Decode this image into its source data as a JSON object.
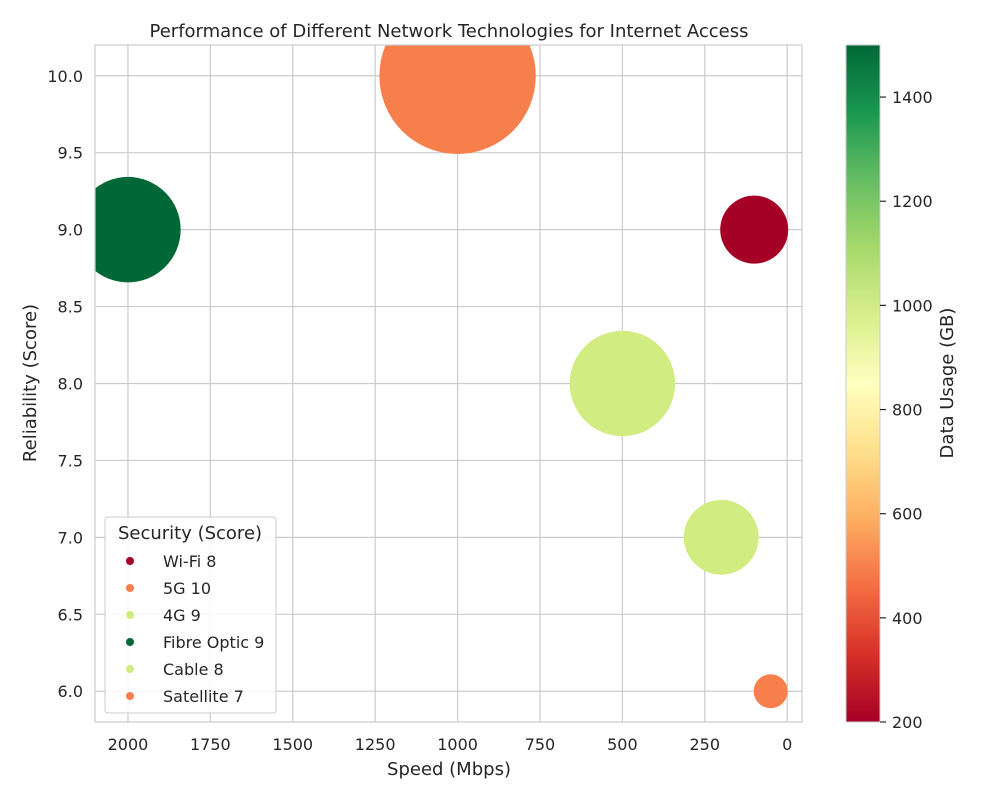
{
  "chart_data": {
    "type": "scatter",
    "title": "Performance of Different Network Technologies for Internet Access",
    "xlabel": "Speed (Mbps)",
    "ylabel": "Reliability (Score)",
    "xlim": [
      2100,
      -45
    ],
    "ylim": [
      5.8,
      10.2
    ],
    "x_inverted": true,
    "x_ticks": [
      2000,
      1750,
      1500,
      1250,
      1000,
      750,
      500,
      250,
      0
    ],
    "y_ticks": [
      "6.0",
      "6.5",
      "7.0",
      "7.5",
      "8.0",
      "8.5",
      "9.0",
      "9.5",
      "10.0"
    ],
    "grid": true,
    "legend": {
      "title": "Security (Score)",
      "placement": "lower-left",
      "entries": [
        "Wi-Fi 8",
        "5G 10",
        "4G 9",
        "Fibre Optic 9",
        "Cable 8",
        "Satellite 7"
      ]
    },
    "colorbar": {
      "label": "Data Usage (GB)",
      "range": [
        200,
        1500
      ],
      "ticks": [
        200,
        400,
        600,
        800,
        1000,
        1200,
        1400
      ],
      "colormap": "RdYlGn"
    },
    "points": [
      {
        "label": "Wi-Fi",
        "speed": 100,
        "reliability": 9,
        "security": 8,
        "data_usage": 200,
        "bubble_size": 2,
        "color": "#a50026"
      },
      {
        "label": "5G",
        "speed": 1000,
        "reliability": 10,
        "security": 10,
        "data_usage": 500,
        "bubble_size": 4.6,
        "color": "#f67f4b"
      },
      {
        "label": "4G",
        "speed": 500,
        "reliability": 8,
        "security": 9,
        "data_usage": 1000,
        "bubble_size": 3.1,
        "color": "#d1ec81"
      },
      {
        "label": "Fibre Optic",
        "speed": 2000,
        "reliability": 9,
        "security": 9,
        "data_usage": 1500,
        "bubble_size": 3.1,
        "color": "#006837"
      },
      {
        "label": "Cable",
        "speed": 200,
        "reliability": 7,
        "security": 8,
        "data_usage": 1000,
        "bubble_size": 2.2,
        "color": "#d1ec81"
      },
      {
        "label": "Satellite",
        "speed": 50,
        "reliability": 6,
        "security": 7,
        "data_usage": 500,
        "bubble_size": 1,
        "color": "#f67f4b"
      }
    ]
  }
}
